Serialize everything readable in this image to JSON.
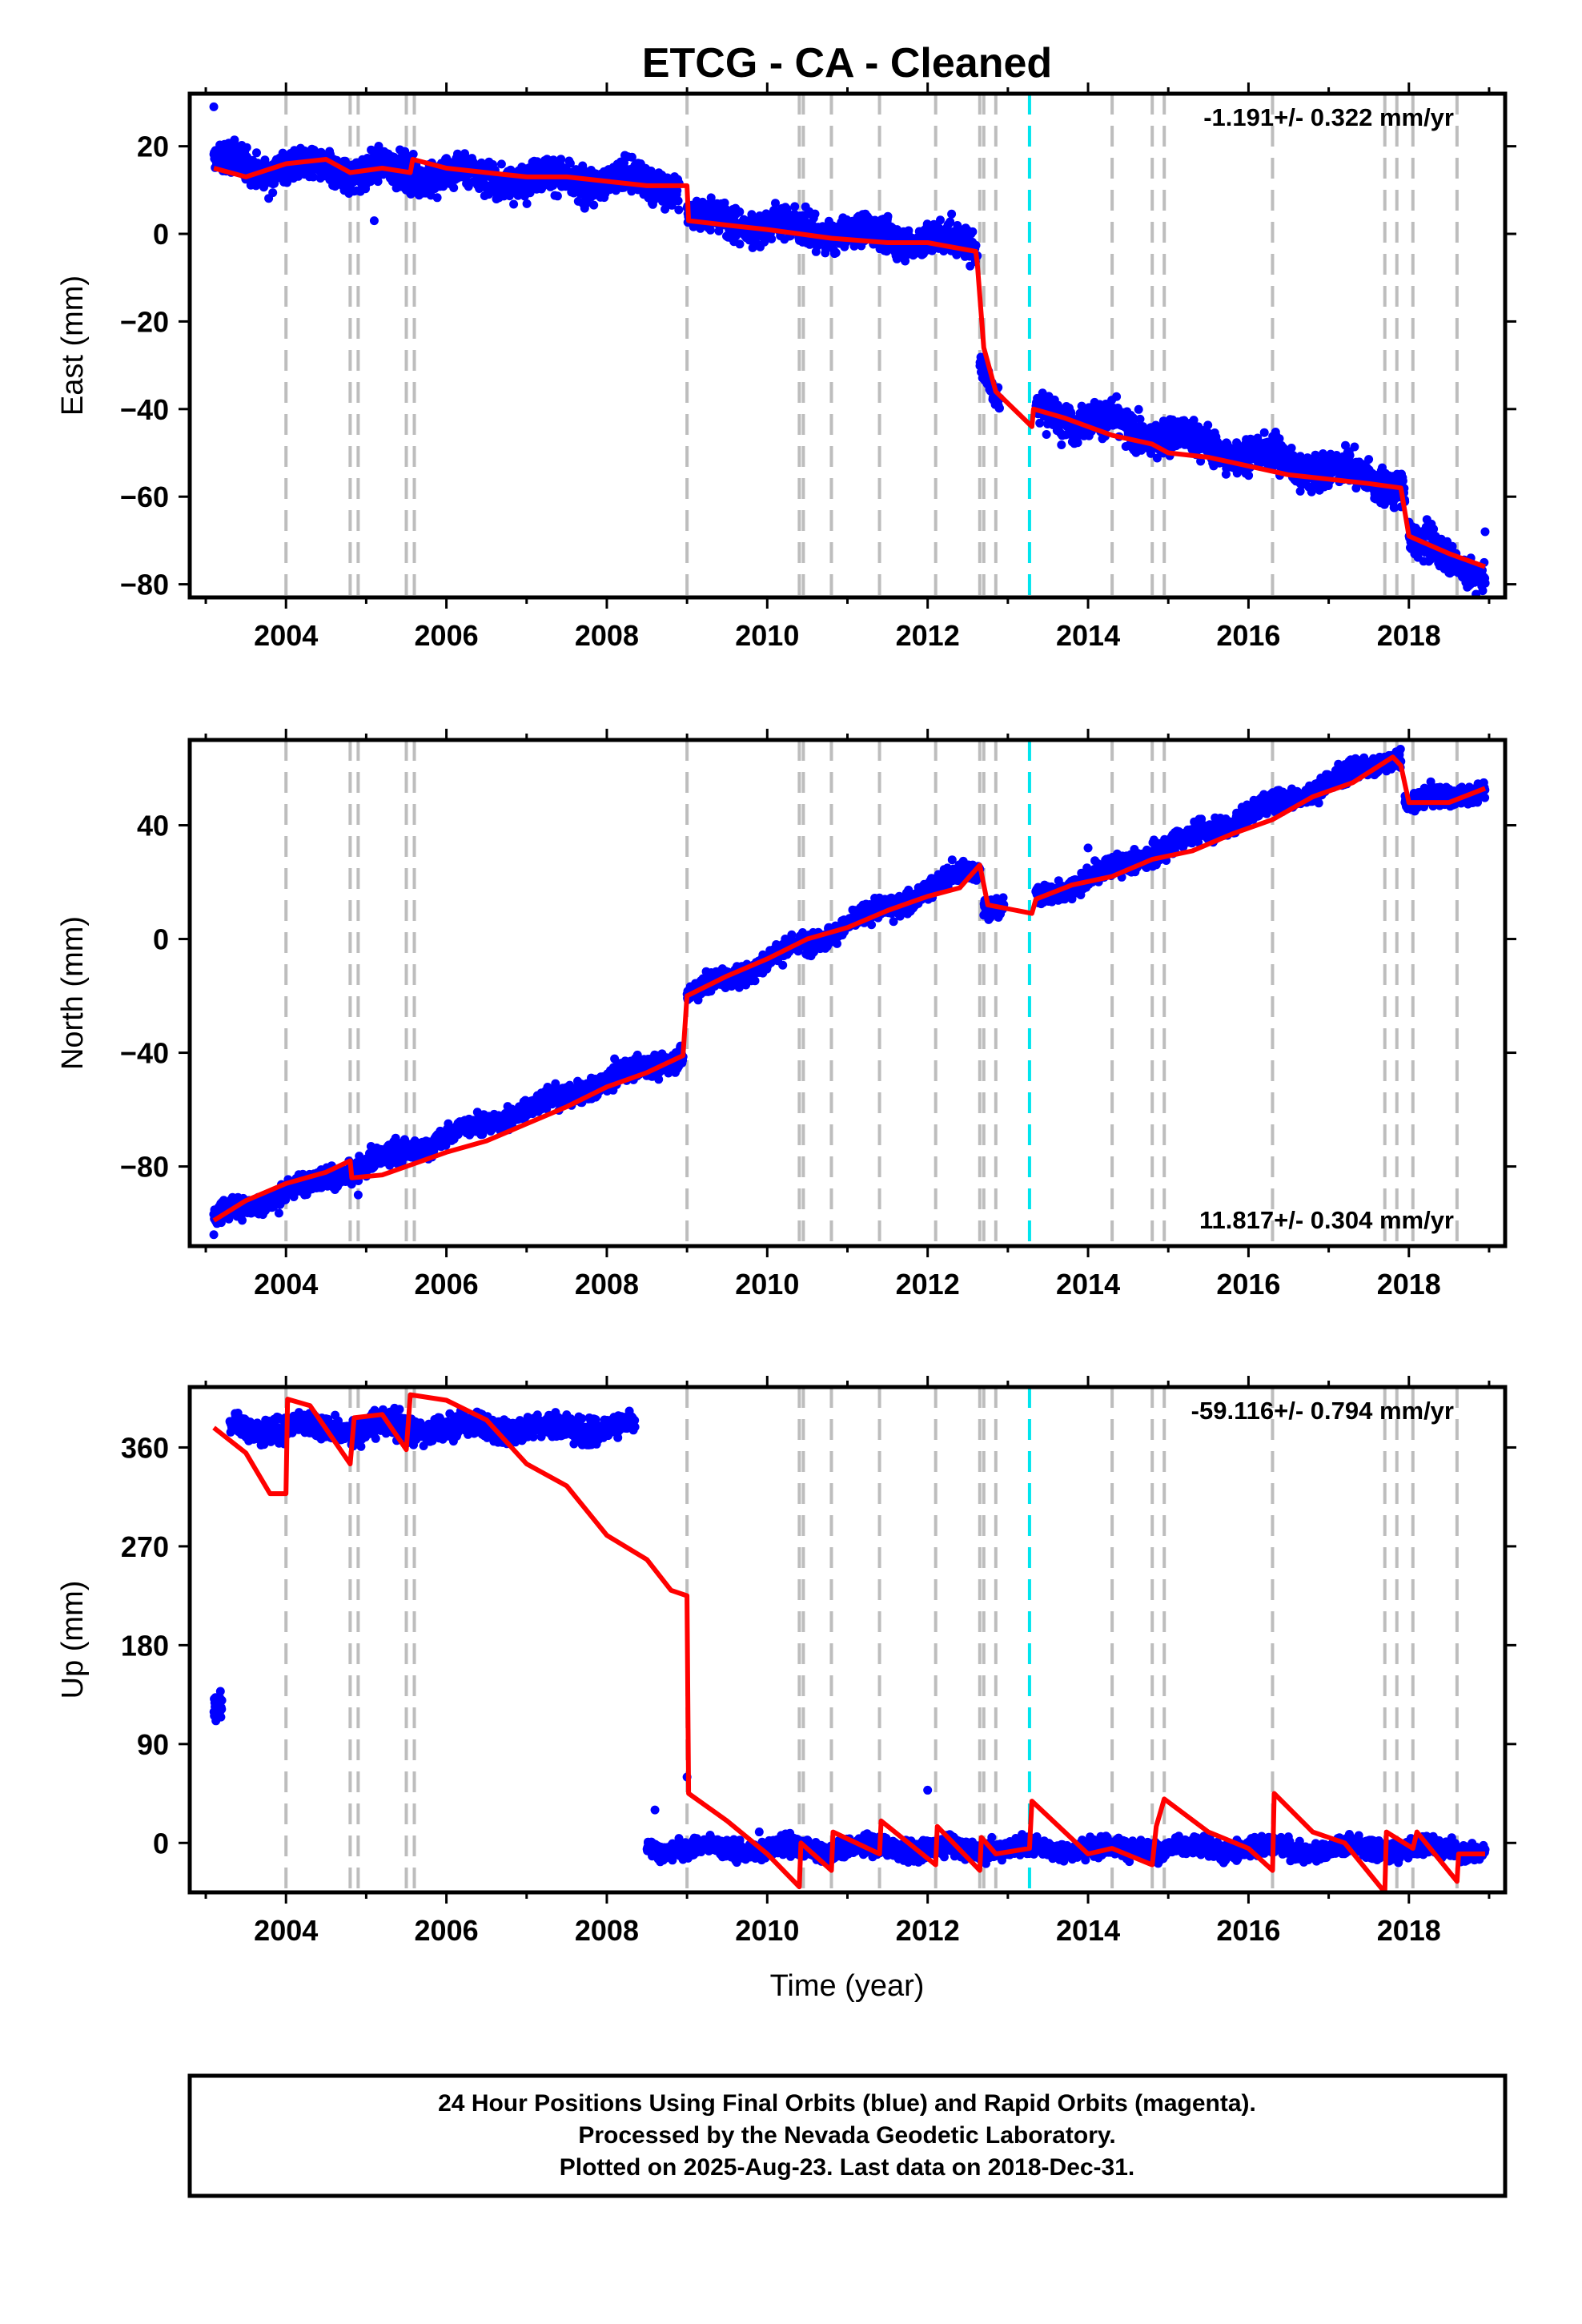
{
  "figure": {
    "title": "ETCG  - CA - Cleaned",
    "xlabel": "Time (year)",
    "footer_lines": [
      "24 Hour Positions Using Final Orbits (blue) and Rapid Orbits (magenta).",
      "Processed by the Nevada Geodetic Laboratory.",
      "Plotted on 2025-Aug-23. Last data on 2018-Dec-31."
    ]
  },
  "colors": {
    "points": "#0000ff",
    "model": "#ff0000",
    "event_lines": "#bdbdbd",
    "highlight_line": "#00e5ee",
    "frame": "#000000"
  },
  "chart_data": [
    {
      "type": "scatter",
      "name": "east",
      "ylabel": "East (mm)",
      "rate_label": "-1.191+/- 0.322 mm/yr",
      "rate_position": "top-right",
      "xlim": [
        2002.8,
        2019.2
      ],
      "ylim": [
        -83,
        32
      ],
      "xticks": [
        2004,
        2006,
        2008,
        2010,
        2012,
        2014,
        2016,
        2018
      ],
      "yticks": [
        20,
        0,
        -20,
        -40,
        -60,
        -80
      ],
      "ytick_labels": [
        "20",
        "0",
        "−20",
        "−40",
        "−60",
        "−80"
      ],
      "event_lines": [
        2004.0,
        2004.8,
        2004.9,
        2005.5,
        2005.6,
        2009.0,
        2010.4,
        2010.45,
        2010.8,
        2011.4,
        2012.1,
        2012.65,
        2012.7,
        2012.85,
        2014.3,
        2014.8,
        2014.95,
        2016.3,
        2017.7,
        2017.85,
        2018.05,
        2018.6
      ],
      "highlight_line": 2013.27,
      "model": [
        [
          2003.1,
          15
        ],
        [
          2003.5,
          13
        ],
        [
          2004.0,
          16
        ],
        [
          2004.5,
          17
        ],
        [
          2004.8,
          14
        ],
        [
          2005.2,
          15
        ],
        [
          2005.55,
          14
        ],
        [
          2005.58,
          17
        ],
        [
          2006.0,
          15
        ],
        [
          2006.5,
          14
        ],
        [
          2007.0,
          13
        ],
        [
          2007.5,
          13
        ],
        [
          2008.0,
          12
        ],
        [
          2008.5,
          11
        ],
        [
          2009.0,
          11
        ],
        [
          2009.02,
          3
        ],
        [
          2009.5,
          2
        ],
        [
          2010.0,
          1
        ],
        [
          2010.4,
          0
        ],
        [
          2010.8,
          -1
        ],
        [
          2011.5,
          -2
        ],
        [
          2012.0,
          -2
        ],
        [
          2012.6,
          -4
        ],
        [
          2012.62,
          -7
        ],
        [
          2012.7,
          -26
        ],
        [
          2012.85,
          -36
        ],
        [
          2013.3,
          -44
        ],
        [
          2013.32,
          -40
        ],
        [
          2013.7,
          -42
        ],
        [
          2014.0,
          -44
        ],
        [
          2014.3,
          -46
        ],
        [
          2014.8,
          -48
        ],
        [
          2015.0,
          -50
        ],
        [
          2015.5,
          -51
        ],
        [
          2016.0,
          -53
        ],
        [
          2016.5,
          -55
        ],
        [
          2017.0,
          -56
        ],
        [
          2017.5,
          -57
        ],
        [
          2017.9,
          -58
        ],
        [
          2018.0,
          -69
        ],
        [
          2018.5,
          -73
        ],
        [
          2018.95,
          -76
        ]
      ],
      "points_segments": [
        [
          2003.1,
          2008.9,
          16,
          -0.8,
          3.2
        ],
        [
          2009.0,
          2012.6,
          4,
          -1.8,
          3.0
        ],
        [
          2012.65,
          2012.9,
          -28,
          -40,
          2.5
        ],
        [
          2013.35,
          2017.95,
          -40,
          -3.8,
          3.2
        ],
        [
          2018.0,
          2018.95,
          -70,
          -8,
          3.0
        ]
      ],
      "outliers": [
        [
          2003.1,
          29
        ],
        [
          2005.1,
          3
        ],
        [
          2012.62,
          -5
        ],
        [
          2018.95,
          -68
        ]
      ]
    },
    {
      "type": "scatter",
      "name": "north",
      "ylabel": "North (mm)",
      "rate_label": "11.817+/- 0.304 mm/yr",
      "rate_position": "bottom-right",
      "xlim": [
        2002.8,
        2019.2
      ],
      "ylim": [
        -108,
        70
      ],
      "xticks": [
        2004,
        2006,
        2008,
        2010,
        2012,
        2014,
        2016,
        2018
      ],
      "yticks": [
        40,
        0,
        -40,
        -80
      ],
      "ytick_labels": [
        "40",
        "0",
        "−40",
        "−80"
      ],
      "event_lines": [
        2004.0,
        2004.8,
        2004.9,
        2005.5,
        2005.6,
        2009.0,
        2010.4,
        2010.45,
        2010.8,
        2011.4,
        2012.1,
        2012.65,
        2012.7,
        2012.85,
        2014.3,
        2014.8,
        2014.95,
        2016.3,
        2017.7,
        2017.85,
        2018.05,
        2018.6
      ],
      "highlight_line": 2013.27,
      "model": [
        [
          2003.1,
          -99
        ],
        [
          2003.5,
          -92
        ],
        [
          2004.0,
          -86
        ],
        [
          2004.5,
          -82
        ],
        [
          2004.8,
          -78
        ],
        [
          2004.82,
          -84
        ],
        [
          2005.2,
          -83
        ],
        [
          2005.5,
          -80
        ],
        [
          2006.0,
          -75
        ],
        [
          2006.5,
          -71
        ],
        [
          2007.0,
          -65
        ],
        [
          2007.5,
          -59
        ],
        [
          2008.0,
          -52
        ],
        [
          2008.5,
          -47
        ],
        [
          2008.95,
          -41
        ],
        [
          2009.0,
          -20
        ],
        [
          2009.5,
          -13
        ],
        [
          2010.0,
          -7
        ],
        [
          2010.5,
          0
        ],
        [
          2011.0,
          4
        ],
        [
          2011.5,
          10
        ],
        [
          2012.0,
          15
        ],
        [
          2012.4,
          18
        ],
        [
          2012.65,
          26
        ],
        [
          2012.75,
          12
        ],
        [
          2013.3,
          9
        ],
        [
          2013.35,
          14
        ],
        [
          2013.8,
          19
        ],
        [
          2014.3,
          22
        ],
        [
          2014.8,
          28
        ],
        [
          2015.3,
          31
        ],
        [
          2015.8,
          37
        ],
        [
          2016.3,
          42
        ],
        [
          2016.8,
          50
        ],
        [
          2017.3,
          55
        ],
        [
          2017.8,
          64
        ],
        [
          2017.9,
          61
        ],
        [
          2018.0,
          48
        ],
        [
          2018.5,
          48
        ],
        [
          2018.95,
          53
        ]
      ],
      "points_segments": [
        [
          2003.1,
          2008.95,
          -98,
          9.8,
          3.0
        ],
        [
          2009.0,
          2012.65,
          -20,
          12.5,
          3.0
        ],
        [
          2012.7,
          2012.95,
          12,
          0,
          2.5
        ],
        [
          2013.35,
          2017.9,
          14,
          11.2,
          3.0
        ],
        [
          2017.95,
          2018.95,
          47,
          6,
          3.0
        ]
      ],
      "outliers": [
        [
          2003.1,
          -104
        ],
        [
          2004.9,
          -90
        ],
        [
          2014.0,
          32
        ],
        [
          2011.3,
          5
        ]
      ]
    },
    {
      "type": "scatter",
      "name": "up",
      "ylabel": "Up (mm)",
      "rate_label": "-59.116+/- 0.794 mm/yr",
      "rate_position": "top-right",
      "xlim": [
        2002.8,
        2019.2
      ],
      "ylim": [
        -45,
        415
      ],
      "xticks": [
        2004,
        2006,
        2008,
        2010,
        2012,
        2014,
        2016,
        2018
      ],
      "yticks": [
        360,
        270,
        180,
        90,
        0
      ],
      "ytick_labels": [
        "360",
        "270",
        "180",
        "90",
        "0"
      ],
      "event_lines": [
        2004.0,
        2004.8,
        2004.9,
        2005.5,
        2005.6,
        2009.0,
        2010.4,
        2010.45,
        2010.8,
        2011.4,
        2012.1,
        2012.65,
        2012.7,
        2012.85,
        2014.3,
        2014.8,
        2014.95,
        2016.3,
        2017.7,
        2017.85,
        2018.05,
        2018.6
      ],
      "highlight_line": 2013.27,
      "model": [
        [
          2003.1,
          378
        ],
        [
          2003.5,
          355
        ],
        [
          2003.8,
          318
        ],
        [
          2004.0,
          318
        ],
        [
          2004.02,
          404
        ],
        [
          2004.3,
          398
        ],
        [
          2004.8,
          345
        ],
        [
          2004.85,
          387
        ],
        [
          2005.2,
          390
        ],
        [
          2005.5,
          358
        ],
        [
          2005.55,
          408
        ],
        [
          2006.0,
          403
        ],
        [
          2006.5,
          385
        ],
        [
          2007.0,
          345
        ],
        [
          2007.5,
          325
        ],
        [
          2008.0,
          280
        ],
        [
          2008.5,
          258
        ],
        [
          2008.8,
          230
        ],
        [
          2009.0,
          225
        ],
        [
          2009.02,
          45
        ],
        [
          2009.5,
          20
        ],
        [
          2010.0,
          -10
        ],
        [
          2010.4,
          -40
        ],
        [
          2010.42,
          0
        ],
        [
          2010.8,
          -25
        ],
        [
          2010.82,
          10
        ],
        [
          2011.4,
          -10
        ],
        [
          2011.42,
          20
        ],
        [
          2012.1,
          -20
        ],
        [
          2012.12,
          15
        ],
        [
          2012.65,
          -25
        ],
        [
          2012.67,
          5
        ],
        [
          2012.85,
          -10
        ],
        [
          2013.27,
          -5
        ],
        [
          2013.3,
          38
        ],
        [
          2014.0,
          -10
        ],
        [
          2014.3,
          -5
        ],
        [
          2014.8,
          -20
        ],
        [
          2014.85,
          15
        ],
        [
          2014.95,
          40
        ],
        [
          2015.5,
          10
        ],
        [
          2016.0,
          -5
        ],
        [
          2016.3,
          -25
        ],
        [
          2016.32,
          45
        ],
        [
          2016.8,
          10
        ],
        [
          2017.2,
          0
        ],
        [
          2017.7,
          -45
        ],
        [
          2017.72,
          10
        ],
        [
          2018.05,
          -5
        ],
        [
          2018.1,
          10
        ],
        [
          2018.6,
          -35
        ],
        [
          2018.62,
          -10
        ],
        [
          2018.95,
          -10
        ]
      ],
      "points_segments": [
        [
          2003.1,
          2003.2,
          120,
          0,
          8
        ],
        [
          2003.3,
          2008.35,
          378,
          0,
          9
        ],
        [
          2008.5,
          2018.95,
          -5,
          0,
          7
        ]
      ],
      "outliers": [
        [
          2009.0,
          60
        ],
        [
          2008.6,
          30
        ],
        [
          2012.0,
          48
        ],
        [
          2012.8,
          5
        ],
        [
          2009.9,
          10
        ]
      ]
    }
  ]
}
